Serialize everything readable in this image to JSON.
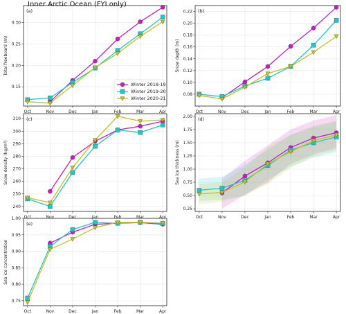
{
  "title": "Inner Arctic Ocean (FYI only)",
  "colors": {
    "Winter 2018-19": "#c21ec2",
    "Winter 2019-20": "#1ec6c6",
    "Winter 2020-21": "#c2c21e"
  },
  "markers": {
    "Winter 2018-19": "circle",
    "Winter 2019-20": "square",
    "Winter 2020-21": "triangle-down"
  },
  "chart_data": [
    {
      "id": "a",
      "panel_label": "(a)",
      "type": "line",
      "ylabel": "Total freeboard (m)",
      "categories": [
        "Oct",
        "Nov",
        "Dec",
        "Jan",
        "Feb",
        "Mar",
        "Apr"
      ],
      "ylim": [
        0.105,
        0.34
      ],
      "yticks": [
        "0.15",
        "0.20",
        "0.25",
        "0.30"
      ],
      "grid": true,
      "legend": "bottom-right",
      "series": [
        {
          "name": "Winter 2018-19",
          "values": [
            null,
            0.115,
            0.165,
            0.21,
            0.262,
            0.302,
            0.336
          ]
        },
        {
          "name": "Winter 2019-20",
          "values": [
            0.12,
            0.124,
            0.16,
            0.194,
            0.235,
            0.274,
            0.313
          ]
        },
        {
          "name": "Winter 2020-21",
          "values": [
            0.115,
            0.112,
            0.153,
            0.195,
            0.228,
            0.268,
            0.302
          ]
        }
      ]
    },
    {
      "id": "b",
      "panel_label": "(b)",
      "type": "line",
      "ylabel": "Snow depth (m)",
      "categories": [
        "Oct",
        "Nov",
        "Dec",
        "Jan",
        "Feb",
        "Mar",
        "Apr"
      ],
      "ylim": [
        0.06,
        0.23
      ],
      "yticks": [
        "0.08",
        "0.10",
        "0.12",
        "0.14",
        "0.16",
        "0.18",
        "0.20",
        "0.22"
      ],
      "grid": true,
      "series": [
        {
          "name": "Winter 2018-19",
          "values": [
            null,
            0.074,
            0.101,
            0.127,
            0.161,
            0.192,
            0.227
          ]
        },
        {
          "name": "Winter 2019-20",
          "values": [
            0.08,
            0.076,
            0.094,
            0.107,
            0.127,
            0.163,
            0.205
          ]
        },
        {
          "name": "Winter 2020-21",
          "values": [
            0.078,
            0.072,
            0.092,
            0.115,
            0.127,
            0.151,
            0.178
          ]
        }
      ]
    },
    {
      "id": "c",
      "panel_label": "(c)",
      "type": "line",
      "ylabel": "Snow density (kg/m³)",
      "categories": [
        "Oct",
        "Nov",
        "Dec",
        "Jan",
        "Feb",
        "Mar",
        "Apr"
      ],
      "ylim": [
        236,
        314
      ],
      "yticks": [
        "240",
        "250",
        "260",
        "270",
        "280",
        "290",
        "300",
        "310"
      ],
      "grid": true,
      "series": [
        {
          "name": "Winter 2018-19",
          "values": [
            null,
            252,
            279,
            292,
            301,
            304,
            308
          ]
        },
        {
          "name": "Winter 2019-20",
          "values": [
            246,
            240,
            267,
            288,
            301,
            299,
            305
          ]
        },
        {
          "name": "Winter 2020-21",
          "values": [
            247,
            243,
            271,
            293,
            312,
            308,
            309
          ]
        }
      ]
    },
    {
      "id": "d",
      "panel_label": "(d)",
      "type": "line",
      "ylabel": "Sea ice thickness (m)",
      "categories": [
        "Oct",
        "Nov",
        "Dec",
        "Jan",
        "Feb",
        "Mar",
        "Apr"
      ],
      "ylim": [
        0.2,
        2.05
      ],
      "yticks": [
        "0.25",
        "0.50",
        "0.75",
        "1.00",
        "1.25",
        "1.50",
        "1.75",
        "2.00"
      ],
      "grid": true,
      "bands": "shaded spread around each series",
      "series": [
        {
          "name": "Winter 2018-19",
          "values": [
            null,
            0.55,
            0.87,
            1.12,
            1.41,
            1.59,
            1.69
          ],
          "lower": [
            null,
            0.25,
            0.52,
            0.75,
            1.1,
            1.28,
            1.4
          ],
          "upper": [
            null,
            0.82,
            1.16,
            1.45,
            1.75,
            1.92,
            2.02
          ]
        },
        {
          "name": "Winter 2019-20",
          "values": [
            0.6,
            0.64,
            0.79,
            1.07,
            1.36,
            1.5,
            1.61
          ],
          "lower": [
            0.4,
            0.42,
            0.5,
            0.8,
            1.05,
            1.22,
            1.32
          ],
          "upper": [
            0.82,
            0.86,
            1.08,
            1.37,
            1.65,
            1.8,
            1.9
          ]
        },
        {
          "name": "Winter 2020-21",
          "values": [
            0.53,
            0.56,
            0.76,
            1.1,
            1.33,
            1.54,
            1.65
          ],
          "lower": [
            0.34,
            0.38,
            0.5,
            0.72,
            1.02,
            1.25,
            1.36
          ],
          "upper": [
            0.72,
            0.75,
            1.03,
            1.42,
            1.65,
            1.82,
            1.92
          ]
        }
      ]
    },
    {
      "id": "e",
      "panel_label": "(e)",
      "type": "line",
      "ylabel": "Sea ice concentration",
      "categories": [
        "Oct",
        "Nov",
        "Dec",
        "Jan",
        "Feb",
        "Mar",
        "Apr"
      ],
      "ylim": [
        0.735,
        1.0
      ],
      "yticks": [
        "0.75",
        "0.80",
        "0.85",
        "0.90",
        "0.95",
        "1.00"
      ],
      "grid": true,
      "series": [
        {
          "name": "Winter 2018-19",
          "values": [
            null,
            0.925,
            0.958,
            0.982,
            0.985,
            0.987,
            0.982
          ]
        },
        {
          "name": "Winter 2019-20",
          "values": [
            0.758,
            0.915,
            0.966,
            0.988,
            0.985,
            0.988,
            0.984
          ]
        },
        {
          "name": "Winter 2020-21",
          "values": [
            0.745,
            0.906,
            0.937,
            0.972,
            0.988,
            0.988,
            0.986
          ]
        }
      ]
    }
  ]
}
